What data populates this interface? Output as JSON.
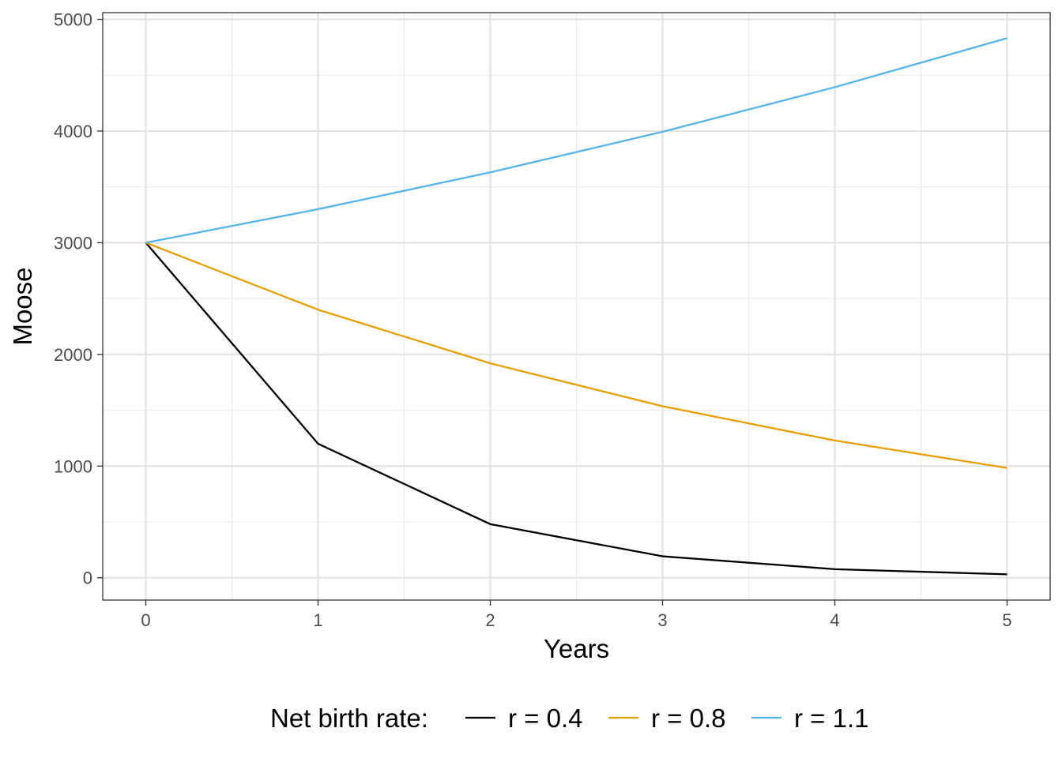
{
  "chart_data": {
    "type": "line",
    "title": "",
    "xlabel": "Years",
    "ylabel": "Moose",
    "x": [
      0,
      1,
      2,
      3,
      4,
      5
    ],
    "xlim": [
      -0.25,
      5.25
    ],
    "ylim": [
      -200,
      5060
    ],
    "x_ticks": [
      0,
      1,
      2,
      3,
      4,
      5
    ],
    "y_ticks": [
      0,
      1000,
      2000,
      3000,
      4000,
      5000
    ],
    "grid": true,
    "legend": {
      "title": "Net birth rate:",
      "position": "bottom"
    },
    "series": [
      {
        "name": "r = 0.4",
        "color": "#000000",
        "values": [
          3000,
          1200,
          480,
          192,
          76.8,
          30.72
        ]
      },
      {
        "name": "r = 0.8",
        "color": "#E69F00",
        "values": [
          3000,
          2400,
          1920,
          1536,
          1228.8,
          983.04
        ]
      },
      {
        "name": "r = 1.1",
        "color": "#56B4E9",
        "values": [
          3000,
          3300,
          3630,
          3993,
          4392.3,
          4831.53
        ]
      }
    ]
  }
}
